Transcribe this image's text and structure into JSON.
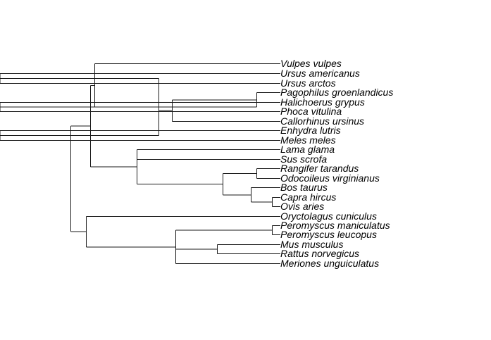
{
  "tree": {
    "type": "phylogenetic-tree",
    "tips": [
      "Vulpes vulpes",
      "Ursus americanus",
      "Ursus arctos",
      "Pagophilus groenlandicus",
      "Halichoerus grypus",
      "Phoca vitulina",
      "Callorhinus ursinus",
      "Enhydra lutris",
      "Meles meles",
      "Lama glama",
      "Sus scrofa",
      "Rangifer tarandus",
      "Odocoileus virginianus",
      "Bos taurus",
      "Capra hircus",
      "Ovis aries",
      "Oryctolagus cuniculus",
      "Peromyscus maniculatus",
      "Peromyscus leucopus",
      "Mus musculus",
      "Rattus norvegicus",
      "Meriones unguiculatus"
    ],
    "newick": "(((Vulpes vulpes,((Ursus americanus,Ursus arctos),((Pagophilus groenlandicus,(Halichoerus grypus,Phoca vitulina)),Callorhinus ursinus),(Enhydra lutris,Meles meles))),(Lama glama,Sus scrofa,((Rangifer tarandus,Odocoileus virginianus),(Bos taurus,(Capra hircus,Ovis aries))))),(Oryctolagus cuniculus,((Peromyscus maniculatus,Peromyscus leucopus),(Mus musculus,Rattus norvegicus),Meriones unguiculatus)));"
  }
}
